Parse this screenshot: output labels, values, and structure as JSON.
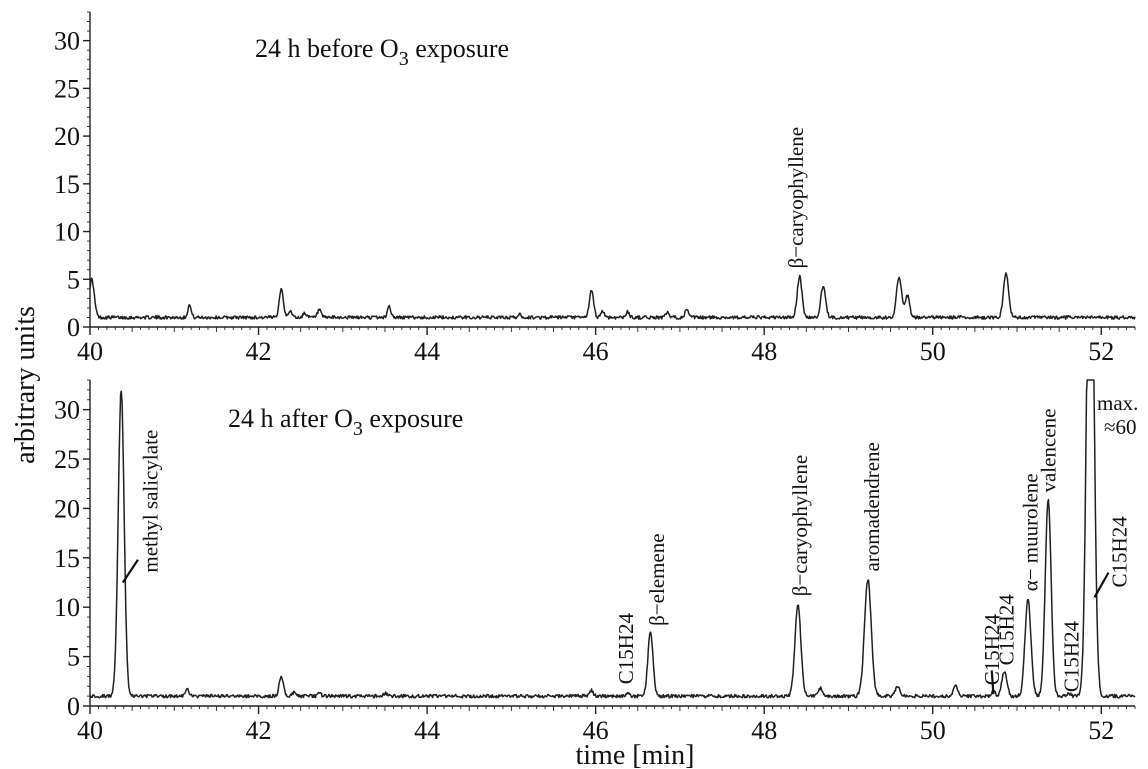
{
  "chart_data": [
    {
      "type": "line",
      "title": "24 h before O3 exposure",
      "title_parts": {
        "before": "24 h before O",
        "subscript": "3",
        "after": " exposure"
      },
      "xlim": [
        40,
        52.4
      ],
      "ylim": [
        0,
        33
      ],
      "xticks": [
        40,
        42,
        44,
        46,
        48,
        50,
        52
      ],
      "yticks": [
        0,
        5,
        10,
        15,
        20,
        25,
        30
      ],
      "baseline": 1.0,
      "series": [
        {
          "peaks": [
            {
              "rt": 40.02,
              "h": 5.0,
              "w": 0.03
            },
            {
              "rt": 41.18,
              "h": 2.3,
              "w": 0.02
            },
            {
              "rt": 42.27,
              "h": 4.0,
              "w": 0.025
            },
            {
              "rt": 42.38,
              "h": 1.7,
              "w": 0.02
            },
            {
              "rt": 42.55,
              "h": 1.5,
              "w": 0.02
            },
            {
              "rt": 42.72,
              "h": 1.8,
              "w": 0.02
            },
            {
              "rt": 43.55,
              "h": 2.2,
              "w": 0.02
            },
            {
              "rt": 45.1,
              "h": 1.3,
              "w": 0.02
            },
            {
              "rt": 45.95,
              "h": 3.8,
              "w": 0.025
            },
            {
              "rt": 46.08,
              "h": 1.7,
              "w": 0.02
            },
            {
              "rt": 46.38,
              "h": 1.6,
              "w": 0.02
            },
            {
              "rt": 46.85,
              "h": 1.5,
              "w": 0.02
            },
            {
              "rt": 47.08,
              "h": 1.8,
              "w": 0.02
            },
            {
              "rt": 48.42,
              "h": 5.3,
              "w": 0.028
            },
            {
              "rt": 48.7,
              "h": 4.3,
              "w": 0.028
            },
            {
              "rt": 49.6,
              "h": 5.3,
              "w": 0.03
            },
            {
              "rt": 49.7,
              "h": 3.3,
              "w": 0.025
            },
            {
              "rt": 50.87,
              "h": 5.6,
              "w": 0.03
            }
          ]
        }
      ],
      "annotations": [
        {
          "text": "β−caryophyllene",
          "rt": 48.42,
          "y": 5.3
        }
      ]
    },
    {
      "type": "line",
      "title": "24 h after O3 exposure",
      "title_parts": {
        "before": "24 h after O",
        "subscript": "3",
        "after": " exposure"
      },
      "xlabel": "time [min]",
      "xlim": [
        40,
        52.4
      ],
      "ylim": [
        0,
        33
      ],
      "xticks": [
        40,
        42,
        44,
        46,
        48,
        50,
        52
      ],
      "yticks": [
        0,
        5,
        10,
        15,
        20,
        25,
        30
      ],
      "baseline": 1.0,
      "series": [
        {
          "peaks": [
            {
              "rt": 40.37,
              "h": 32.0,
              "w": 0.035
            },
            {
              "rt": 41.15,
              "h": 1.7,
              "w": 0.02
            },
            {
              "rt": 42.27,
              "h": 3.0,
              "w": 0.025
            },
            {
              "rt": 42.42,
              "h": 1.4,
              "w": 0.02
            },
            {
              "rt": 42.72,
              "h": 1.3,
              "w": 0.02
            },
            {
              "rt": 43.5,
              "h": 1.3,
              "w": 0.02
            },
            {
              "rt": 45.95,
              "h": 1.6,
              "w": 0.02
            },
            {
              "rt": 46.38,
              "h": 1.4,
              "w": 0.02
            },
            {
              "rt": 46.65,
              "h": 7.5,
              "w": 0.03
            },
            {
              "rt": 48.4,
              "h": 10.3,
              "w": 0.035
            },
            {
              "rt": 48.67,
              "h": 1.8,
              "w": 0.025
            },
            {
              "rt": 49.23,
              "h": 12.8,
              "w": 0.04
            },
            {
              "rt": 49.58,
              "h": 2.0,
              "w": 0.025
            },
            {
              "rt": 50.27,
              "h": 2.1,
              "w": 0.025
            },
            {
              "rt": 50.72,
              "h": 1.5,
              "w": 0.02
            },
            {
              "rt": 50.85,
              "h": 3.5,
              "w": 0.03
            },
            {
              "rt": 51.13,
              "h": 10.8,
              "w": 0.035
            },
            {
              "rt": 51.37,
              "h": 20.8,
              "w": 0.035
            },
            {
              "rt": 51.62,
              "h": 1.2,
              "w": 0.02
            },
            {
              "rt": 51.87,
              "h": 60.0,
              "w": 0.04
            }
          ]
        }
      ],
      "annotations": [
        {
          "text": "methyl salicylate",
          "rt": 40.45,
          "y": 13.5
        },
        {
          "text": "C15H24",
          "rt": 46.38,
          "y": 1.6
        },
        {
          "text": "β−elemene",
          "rt": 46.65,
          "y": 7.5
        },
        {
          "text": "β−caryophyllene",
          "rt": 48.4,
          "y": 10.3
        },
        {
          "text": "aromadendrene",
          "rt": 49.23,
          "y": 12.8
        },
        {
          "text": "C15H24",
          "rt": 50.72,
          "y": 1.5
        },
        {
          "text": "C15H24",
          "rt": 50.85,
          "y": 3.5
        },
        {
          "text": "α− muurolene",
          "rt": 51.13,
          "y": 10.8
        },
        {
          "text": "valencene",
          "rt": 51.37,
          "y": 20.8
        },
        {
          "text": "C15H24",
          "rt": 51.62,
          "y": 1.2
        },
        {
          "text": "C15H24",
          "rt": 51.95,
          "y": 12.0
        }
      ],
      "peak_max_note": [
        "max.",
        "≈60"
      ]
    }
  ],
  "ylabel": "arbitrary units"
}
